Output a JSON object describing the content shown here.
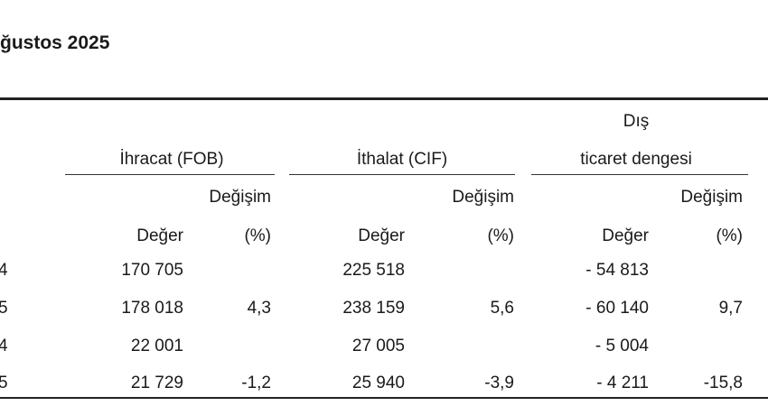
{
  "title": "ğustos 2025",
  "groups": [
    {
      "label": "İhracat (FOB)"
    },
    {
      "label": "İthalat (CIF)"
    },
    {
      "label_line1": "Dış",
      "label_line2": "ticaret dengesi"
    }
  ],
  "subheaders": {
    "change": "Değişim",
    "value": "Değer",
    "percent": "(%)"
  },
  "rows": [
    {
      "stub": "4",
      "export_value": "170 705",
      "export_change": "",
      "import_value": "225 518",
      "import_change": "",
      "balance_value": "- 54 813",
      "balance_change": ""
    },
    {
      "stub": "5",
      "export_value": "178 018",
      "export_change": "4,3",
      "import_value": "238 159",
      "import_change": "5,6",
      "balance_value": "- 60 140",
      "balance_change": "9,7"
    },
    {
      "stub": "4",
      "export_value": "22 001",
      "export_change": "",
      "import_value": "27 005",
      "import_change": "",
      "balance_value": "- 5 004",
      "balance_change": ""
    },
    {
      "stub": "5",
      "export_value": "21 729",
      "export_change": "-1,2",
      "import_value": "25 940",
      "import_change": "-3,9",
      "balance_value": "- 4 211",
      "balance_change": "-15,8"
    }
  ]
}
